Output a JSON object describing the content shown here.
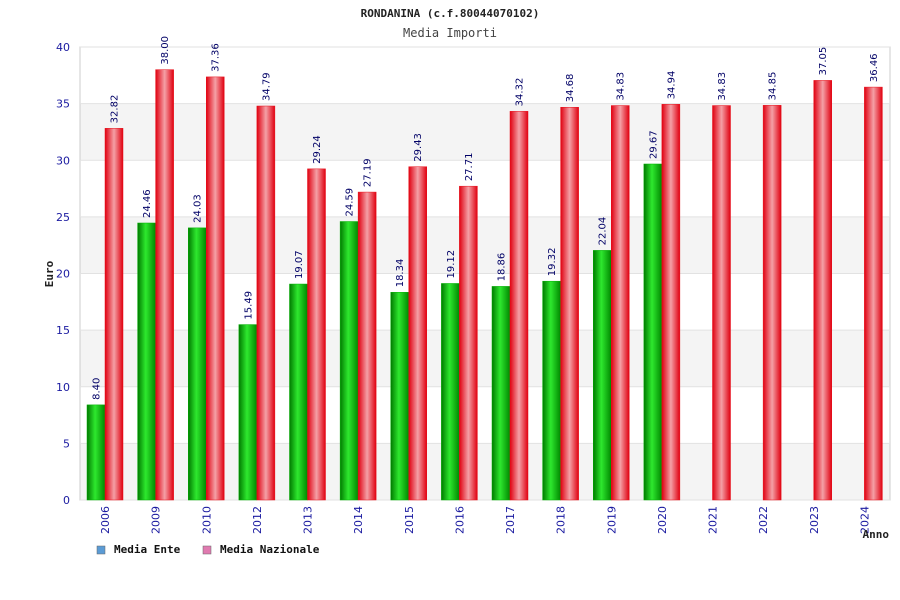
{
  "chart_data": {
    "type": "bar",
    "title": "RONDANINA (c.f.80044070102)",
    "subtitle": "Media Importi",
    "ylabel": "Euro",
    "xlabel": "Anno",
    "ylim": [
      0,
      40
    ],
    "yticks": [
      0,
      5,
      10,
      15,
      20,
      25,
      30,
      35,
      40
    ],
    "grid": true,
    "legend_position": "bottom-left",
    "categories": [
      "2006",
      "2009",
      "2010",
      "2012",
      "2013",
      "2014",
      "2015",
      "2016",
      "2017",
      "2018",
      "2019",
      "2020",
      "2021",
      "2022",
      "2023",
      "2024"
    ],
    "series": [
      {
        "name": "Media Ente",
        "color": "#00b000",
        "legend_color": "#5b9bd5",
        "values": [
          8.4,
          24.46,
          24.03,
          15.49,
          19.07,
          24.59,
          18.34,
          19.12,
          18.86,
          19.32,
          22.04,
          29.67,
          null,
          null,
          null,
          null
        ],
        "labels": [
          "8.40",
          "24.46",
          "24.03",
          "15.49",
          "19.07",
          "24.59",
          "18.34",
          "19.12",
          "18.86",
          "19.32",
          "22.04",
          "29.67",
          "",
          "",
          "",
          ""
        ]
      },
      {
        "name": "Media Nazionale",
        "color": "#e8101a",
        "legend_color": "#e07ab0",
        "values": [
          32.82,
          38.0,
          37.36,
          34.79,
          29.24,
          27.19,
          29.43,
          27.71,
          34.32,
          34.68,
          34.83,
          34.94,
          34.83,
          34.85,
          37.05,
          36.46
        ],
        "labels": [
          "32.82",
          "38.00",
          "37.36",
          "34.79",
          "29.24",
          "27.19",
          "29.43",
          "27.71",
          "34.32",
          "34.68",
          "34.83",
          "34.94",
          "34.83",
          "34.85",
          "37.05",
          "36.46"
        ]
      }
    ]
  }
}
